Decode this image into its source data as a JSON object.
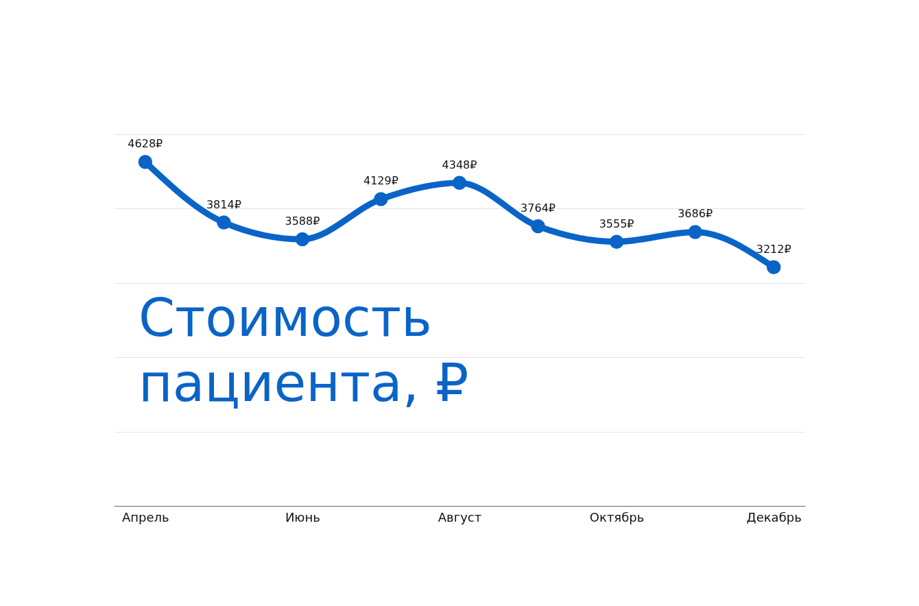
{
  "chart_data": {
    "type": "line",
    "title": "Стоимость пациента, ₽",
    "categories": [
      "Апрель",
      null,
      "Июнь",
      null,
      "Август",
      null,
      "Октябрь",
      null,
      "Декабрь"
    ],
    "series": [
      {
        "color": "#0a64c8",
        "values": [
          4628,
          3814,
          3588,
          4129,
          4348,
          3764,
          3555,
          3686,
          3212
        ],
        "value_labels": [
          "4628₽",
          "3814₽",
          "3588₽",
          "4129₽",
          "4348₽",
          "3764₽",
          "3555₽",
          "3686₽",
          "3212₽"
        ]
      }
    ],
    "ylim": [
      0,
      5000
    ],
    "yticks": [
      {
        "value": 0,
        "label": null
      },
      {
        "value": 1000,
        "label": null
      },
      {
        "value": 2000,
        "label": null
      },
      {
        "value": 3000,
        "label": null
      },
      {
        "value": 4000,
        "label": null
      },
      {
        "value": 5000,
        "label": null
      }
    ],
    "tick_labels": "x",
    "grid": "y",
    "marker": "circle",
    "legend": false
  }
}
